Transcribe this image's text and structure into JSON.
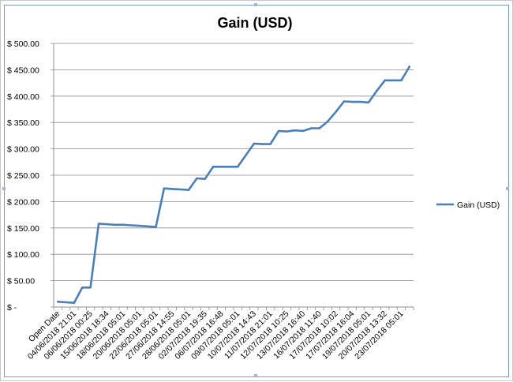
{
  "chart_data": {
    "type": "line",
    "title": "Gain (USD)",
    "xlabel": "",
    "ylabel": "",
    "ylim": [
      0,
      500
    ],
    "y_ticks": [
      "$ -",
      "$ 50.00",
      "$ 100.00",
      "$ 150.00",
      "$ 200.00",
      "$ 250.00",
      "$ 300.00",
      "$ 350.00",
      "$ 400.00",
      "$ 450.00",
      "$ 500.00"
    ],
    "y_tick_values": [
      0,
      50,
      100,
      150,
      200,
      250,
      300,
      350,
      400,
      450,
      500
    ],
    "grid": true,
    "legend_position": "right",
    "line_color": "#4a7ebb",
    "categories": [
      "Open Date",
      "",
      "04/06/2018 21:01",
      "",
      "06/06/2018 00:25",
      "",
      "15/06/2018 18:34",
      "",
      "18/06/2018 05:01",
      "",
      "20/06/2018 05:01",
      "",
      "22/06/2018 05:01",
      "",
      "27/06/2018 14:55",
      "",
      "28/06/2018 05:01",
      "",
      "02/07/2018 19:35",
      "",
      "06/07/2018 16:48",
      "",
      "09/07/2018 05:01",
      "",
      "10/07/2018 14:43",
      "",
      "11/07/2018 21:01",
      "",
      "12/07/2018 10:25",
      "",
      "13/07/2018 16:40",
      "",
      "16/07/2018 11:40",
      "",
      "17/07/2018 10:02",
      "",
      "17/07/2018 16:04",
      "",
      "19/07/2018 05:01",
      "",
      "20/07/2018 13:32",
      "",
      "23/07/2018 05:01",
      ""
    ],
    "series": [
      {
        "name": "Gain (USD)",
        "values": [
          10,
          9,
          8,
          37,
          37,
          158,
          157,
          156,
          156,
          155,
          154,
          153,
          152,
          225,
          224,
          223,
          222,
          244,
          243,
          266,
          266,
          266,
          266,
          288,
          310,
          309,
          309,
          334,
          333,
          335,
          334,
          339,
          339,
          352,
          370,
          390,
          389,
          389,
          388,
          410,
          430,
          430,
          430,
          456
        ]
      }
    ]
  }
}
